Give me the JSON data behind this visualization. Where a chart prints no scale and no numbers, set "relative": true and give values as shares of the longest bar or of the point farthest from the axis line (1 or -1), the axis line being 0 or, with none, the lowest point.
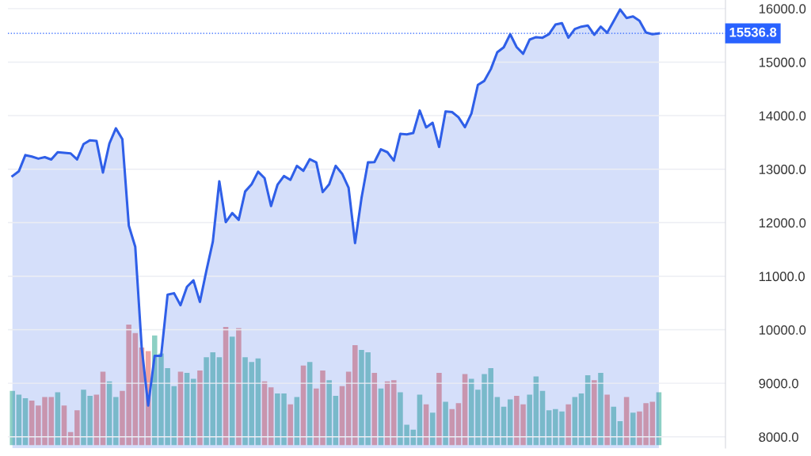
{
  "chart_data": [
    {
      "type": "area",
      "categories": [
        null,
        null,
        null,
        null,
        null,
        null,
        null,
        null,
        null,
        null,
        null,
        null,
        null,
        null,
        null,
        null,
        null,
        null,
        null,
        null,
        null,
        null,
        null,
        null,
        null,
        null,
        null,
        null,
        null,
        null,
        null,
        null,
        null,
        null,
        null,
        null,
        null,
        null,
        null,
        null,
        null,
        null,
        null,
        null,
        null,
        null,
        null,
        null,
        null,
        null,
        null,
        null,
        null,
        null,
        null,
        null,
        null,
        null,
        null,
        null,
        null,
        null,
        null,
        null,
        null,
        null,
        null,
        null,
        null,
        null,
        null,
        null,
        null,
        null,
        null,
        null,
        null,
        null,
        null,
        null,
        null,
        null,
        null,
        null,
        null,
        null,
        null,
        null,
        null,
        null,
        null,
        null,
        null,
        null,
        null,
        null,
        null,
        null,
        null,
        null,
        null
      ],
      "series": [
        {
          "color": "#2f5fe8",
          "values": [
            12871,
            12963,
            13263,
            13235,
            13197,
            13225,
            13181,
            13317,
            13306,
            13295,
            13181,
            13469,
            13540,
            13529,
            12936,
            13480,
            13763,
            13562,
            11946,
            11549,
            9661,
            8584,
            9514,
            9514,
            10656,
            10683,
            10460,
            10803,
            10923,
            10520,
            11103,
            11647,
            12773,
            12011,
            12180,
            12055,
            12583,
            12719,
            12953,
            12833,
            12311,
            12708,
            12871,
            12800,
            13061,
            12969,
            13186,
            13127,
            12572,
            12719,
            13061,
            12915,
            12654,
            11620,
            12463,
            13127,
            13132,
            13372,
            13317,
            13159,
            13660,
            13649,
            13676,
            14095,
            13780,
            13867,
            13415,
            14079,
            14068,
            13970,
            13785,
            14041,
            14574,
            14650,
            14868,
            15183,
            15276,
            15521,
            15281,
            15156,
            15420,
            15466,
            15455,
            15521,
            15700,
            15728,
            15455,
            15619,
            15662,
            15684,
            15510,
            15662,
            15548,
            15766,
            15983,
            15825,
            15853,
            15771,
            15553,
            15521,
            15536.8
          ]
        }
      ],
      "ylim": [
        7790,
        16160
      ],
      "yticks": [
        {
          "value": 8000,
          "label": "8000.0"
        },
        {
          "value": 9000,
          "label": "9000.0"
        },
        {
          "value": 10000,
          "label": "10000.0"
        },
        {
          "value": 11000,
          "label": "11000.0"
        },
        {
          "value": 12000,
          "label": "12000.0"
        },
        {
          "value": 13000,
          "label": "13000.0"
        },
        {
          "value": 14000,
          "label": "14000.0"
        },
        {
          "value": 15000,
          "label": "15000.0"
        },
        {
          "value": 16000,
          "label": "16000.0"
        }
      ],
      "ref_lines": [
        {
          "axis": "y",
          "value": 15536.8,
          "label": "15536.8",
          "color": "#2962ff",
          "line_style": "dotted"
        }
      ],
      "grid": "y",
      "tick_labels": "y"
    },
    {
      "type": "bar",
      "relative": true,
      "tick_labels": false,
      "categories": [
        null,
        null,
        null,
        null,
        null,
        null,
        null,
        null,
        null,
        null,
        null,
        null,
        null,
        null,
        null,
        null,
        null,
        null,
        null,
        null,
        null,
        null,
        null,
        null,
        null,
        null,
        null,
        null,
        null,
        null,
        null,
        null,
        null,
        null,
        null,
        null,
        null,
        null,
        null,
        null,
        null,
        null,
        null,
        null,
        null,
        null,
        null,
        null,
        null,
        null,
        null,
        null,
        null,
        null,
        null,
        null,
        null,
        null,
        null,
        null,
        null,
        null,
        null,
        null,
        null,
        null,
        null,
        null,
        null,
        null,
        null,
        null,
        null,
        null,
        null,
        null,
        null,
        null,
        null,
        null,
        null,
        null,
        null,
        null,
        null,
        null,
        null,
        null,
        null,
        null,
        null,
        null,
        null,
        null,
        null,
        null,
        null,
        null,
        null,
        null,
        null
      ],
      "values": [
        0.45,
        0.42,
        0.39,
        0.37,
        0.33,
        0.4,
        0.4,
        0.44,
        0.33,
        0.11,
        0.29,
        0.46,
        0.41,
        0.42,
        0.61,
        0.53,
        0.4,
        0.45,
        1.0,
        0.93,
        0.81,
        0.78,
        0.91,
        0.76,
        0.64,
        0.49,
        0.61,
        0.6,
        0.55,
        0.62,
        0.73,
        0.77,
        0.73,
        0.98,
        0.9,
        0.97,
        0.73,
        0.69,
        0.72,
        0.53,
        0.48,
        0.43,
        0.43,
        0.34,
        0.4,
        0.66,
        0.69,
        0.47,
        0.62,
        0.54,
        0.41,
        0.49,
        0.61,
        0.83,
        0.79,
        0.77,
        0.6,
        0.47,
        0.53,
        0.54,
        0.44,
        0.17,
        0.13,
        0.42,
        0.34,
        0.27,
        0.6,
        0.36,
        0.3,
        0.35,
        0.59,
        0.55,
        0.46,
        0.59,
        0.64,
        0.4,
        0.32,
        0.38,
        0.41,
        0.34,
        0.42,
        0.57,
        0.45,
        0.29,
        0.3,
        0.28,
        0.34,
        0.4,
        0.43,
        0.58,
        0.54,
        0.6,
        0.42,
        0.32,
        0.2,
        0.4,
        0.27,
        0.28,
        0.35,
        0.36,
        0.44
      ],
      "colors": [
        "#8dd0c4",
        "#8dd0c4",
        "#8dd0c4",
        "#efa3a0",
        "#efa3a0",
        "#efa3a0",
        "#efa3a0",
        "#8dd0c4",
        "#efa3a0",
        "#efa3a0",
        "#efa3a0",
        "#8dd0c4",
        "#8dd0c4",
        "#efa3a0",
        "#efa3a0",
        "#8dd0c4",
        "#8dd0c4",
        "#efa3a0",
        "#efa3a0",
        "#efa3a0",
        "#efa3a0",
        "#efa3a0",
        "#8dd0c4",
        "#8dd0c4",
        "#8dd0c4",
        "#8dd0c4",
        "#efa3a0",
        "#8dd0c4",
        "#8dd0c4",
        "#efa3a0",
        "#8dd0c4",
        "#8dd0c4",
        "#8dd0c4",
        "#efa3a0",
        "#8dd0c4",
        "#efa3a0",
        "#8dd0c4",
        "#8dd0c4",
        "#8dd0c4",
        "#efa3a0",
        "#efa3a0",
        "#8dd0c4",
        "#8dd0c4",
        "#efa3a0",
        "#8dd0c4",
        "#efa3a0",
        "#8dd0c4",
        "#efa3a0",
        "#efa3a0",
        "#8dd0c4",
        "#8dd0c4",
        "#efa3a0",
        "#efa3a0",
        "#efa3a0",
        "#8dd0c4",
        "#8dd0c4",
        "#efa3a0",
        "#8dd0c4",
        "#efa3a0",
        "#efa3a0",
        "#8dd0c4",
        "#8dd0c4",
        "#8dd0c4",
        "#8dd0c4",
        "#efa3a0",
        "#8dd0c4",
        "#efa3a0",
        "#8dd0c4",
        "#efa3a0",
        "#efa3a0",
        "#efa3a0",
        "#8dd0c4",
        "#8dd0c4",
        "#8dd0c4",
        "#8dd0c4",
        "#8dd0c4",
        "#8dd0c4",
        "#8dd0c4",
        "#efa3a0",
        "#efa3a0",
        "#8dd0c4",
        "#8dd0c4",
        "#8dd0c4",
        "#8dd0c4",
        "#8dd0c4",
        "#8dd0c4",
        "#efa3a0",
        "#8dd0c4",
        "#8dd0c4",
        "#8dd0c4",
        "#efa3a0",
        "#8dd0c4",
        "#efa3a0",
        "#8dd0c4",
        "#8dd0c4",
        "#efa3a0",
        "#8dd0c4",
        "#efa3a0",
        "#efa3a0",
        "#efa3a0",
        "#8dd0c4"
      ]
    }
  ]
}
